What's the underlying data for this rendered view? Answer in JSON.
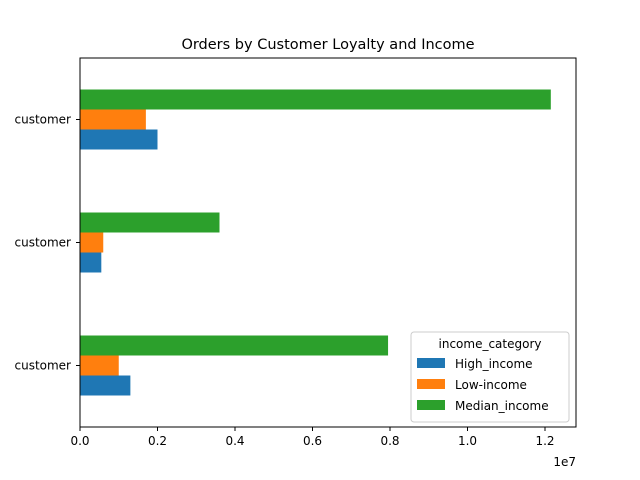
{
  "chart_data": {
    "type": "bar",
    "orientation": "horizontal",
    "title": "Orders by Customer Loyalty and Income",
    "xlabel": "",
    "ylabel": "",
    "x_scale_label": "1e7",
    "xlim": [
      0,
      12800000
    ],
    "x_ticks": [
      0,
      2000000,
      4000000,
      6000000,
      8000000,
      10000000,
      12000000
    ],
    "x_tick_labels": [
      "0.0",
      "0.2",
      "0.4",
      "0.6",
      "0.8",
      "1.0",
      "1.2"
    ],
    "categories": [
      "customer",
      "customer",
      "customer"
    ],
    "legend": {
      "title": "income_category",
      "placement": "lower right"
    },
    "grid": false,
    "series": [
      {
        "name": "High_income",
        "color": "#1f77b4",
        "values": [
          2000000,
          550000,
          1300000
        ]
      },
      {
        "name": "Low-income",
        "color": "#ff7f0e",
        "values": [
          1700000,
          600000,
          1000000
        ]
      },
      {
        "name": "Median_income",
        "color": "#2ca02c",
        "values": [
          12150000,
          3600000,
          7950000
        ]
      }
    ]
  }
}
